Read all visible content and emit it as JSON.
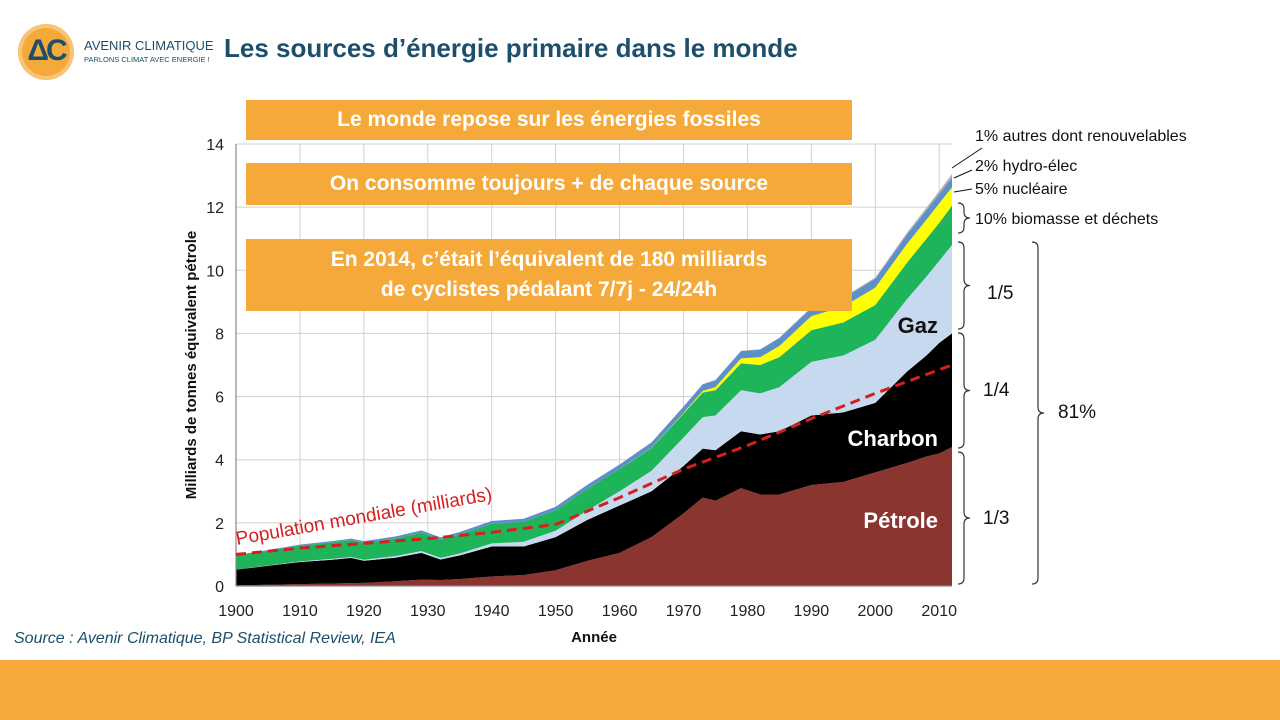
{
  "logo": {
    "mark": "ΔC",
    "name": "AVENIR CLIMATIQUE",
    "tagline": "PARLONS CLIMAT AVEC ENERGIE !"
  },
  "slide_title": "Les sources d’énergie primaire dans le monde",
  "callouts": [
    "Le monde repose sur les énergies fossiles",
    "On consomme toujours + de chaque source",
    "En 2014, c’était l’équivalent de 180 milliards\nde cyclistes pédalant 7/7j - 24/24h"
  ],
  "source_note": "Source : Avenir Climatique, BP Statistical Review, IEA",
  "colors": {
    "petrole": "#8b3530",
    "charbon": "#000000",
    "gaz": "#c7d9ef",
    "biomasse": "#1db45a",
    "nucleaire": "#ffff00",
    "hydro": "#5d8fc9",
    "autres": "#b0b0b0",
    "population": "#d42020",
    "accent": "#f5a93a",
    "title": "#1b4f6b"
  },
  "chart_data": {
    "type": "area",
    "stacked": true,
    "ylabel": "Milliards de tonnes équivalent pétrole",
    "xlabel": "Année",
    "xlim": [
      1900,
      2012
    ],
    "ylim": [
      0,
      14
    ],
    "xticks": [
      1900,
      1910,
      1920,
      1930,
      1940,
      1950,
      1960,
      1970,
      1980,
      1990,
      2000,
      2010
    ],
    "yticks": [
      0,
      2,
      4,
      6,
      8,
      10,
      12,
      14
    ],
    "grid": true,
    "x": [
      1900,
      1905,
      1910,
      1915,
      1918,
      1920,
      1925,
      1929,
      1932,
      1935,
      1940,
      1945,
      1950,
      1955,
      1960,
      1965,
      1970,
      1973,
      1975,
      1979,
      1982,
      1985,
      1990,
      1995,
      2000,
      2005,
      2008,
      2010,
      2012
    ],
    "series": [
      {
        "name": "Pétrole",
        "key": "petrole",
        "values": [
          0.02,
          0.04,
          0.06,
          0.08,
          0.09,
          0.1,
          0.15,
          0.2,
          0.19,
          0.22,
          0.3,
          0.35,
          0.5,
          0.8,
          1.05,
          1.55,
          2.3,
          2.8,
          2.7,
          3.1,
          2.9,
          2.9,
          3.2,
          3.3,
          3.6,
          3.9,
          4.1,
          4.2,
          4.4
        ]
      },
      {
        "name": "Charbon",
        "key": "charbon",
        "values": [
          0.5,
          0.6,
          0.7,
          0.75,
          0.8,
          0.7,
          0.75,
          0.85,
          0.65,
          0.75,
          0.95,
          0.9,
          1.05,
          1.3,
          1.5,
          1.45,
          1.5,
          1.55,
          1.6,
          1.8,
          1.9,
          2.0,
          2.2,
          2.2,
          2.2,
          2.9,
          3.2,
          3.5,
          3.6
        ]
      },
      {
        "name": "Gaz",
        "key": "gaz",
        "values": [
          0.0,
          0.01,
          0.02,
          0.03,
          0.03,
          0.03,
          0.05,
          0.06,
          0.05,
          0.06,
          0.1,
          0.15,
          0.2,
          0.3,
          0.45,
          0.65,
          0.9,
          1.0,
          1.1,
          1.3,
          1.3,
          1.4,
          1.7,
          1.8,
          2.0,
          2.3,
          2.5,
          2.6,
          2.8
        ]
      },
      {
        "name": "10% biomasse et déchets",
        "key": "biomasse",
        "values": [
          0.45,
          0.47,
          0.5,
          0.52,
          0.53,
          0.54,
          0.56,
          0.58,
          0.58,
          0.6,
          0.62,
          0.63,
          0.65,
          0.68,
          0.7,
          0.72,
          0.76,
          0.78,
          0.8,
          0.85,
          0.9,
          0.95,
          1.0,
          1.05,
          1.1,
          1.15,
          1.2,
          1.2,
          1.25
        ]
      },
      {
        "name": "5% nucléaire",
        "key": "nucleaire",
        "values": [
          0,
          0,
          0,
          0,
          0,
          0,
          0,
          0,
          0,
          0,
          0,
          0,
          0,
          0,
          0,
          0.01,
          0.02,
          0.05,
          0.1,
          0.16,
          0.25,
          0.35,
          0.45,
          0.5,
          0.55,
          0.6,
          0.6,
          0.62,
          0.58
        ]
      },
      {
        "name": "2% hydro-élec",
        "key": "hydro",
        "values": [
          0.01,
          0.02,
          0.03,
          0.04,
          0.05,
          0.05,
          0.06,
          0.07,
          0.07,
          0.08,
          0.09,
          0.1,
          0.11,
          0.13,
          0.15,
          0.17,
          0.2,
          0.21,
          0.22,
          0.23,
          0.24,
          0.25,
          0.26,
          0.27,
          0.28,
          0.29,
          0.3,
          0.3,
          0.31
        ]
      },
      {
        "name": "1% autres dont renouvelables",
        "key": "autres",
        "values": [
          0,
          0,
          0,
          0,
          0,
          0,
          0,
          0,
          0,
          0,
          0,
          0,
          0,
          0,
          0,
          0,
          0,
          0,
          0.01,
          0.01,
          0.01,
          0.02,
          0.02,
          0.03,
          0.04,
          0.06,
          0.08,
          0.09,
          0.11
        ]
      }
    ],
    "population": {
      "name": "Population mondiale (milliards)",
      "x": [
        1900,
        1910,
        1920,
        1930,
        1940,
        1950,
        1960,
        1970,
        1980,
        1990,
        2000,
        2012
      ],
      "values": [
        1.0,
        1.2,
        1.35,
        1.5,
        1.7,
        1.95,
        2.8,
        3.7,
        4.45,
        5.3,
        6.1,
        7.0
      ]
    },
    "area_labels": [
      "Gaz",
      "Charbon",
      "Pétrole"
    ],
    "annotations": [
      "1% autres dont renouvelables",
      "2% hydro-élec",
      "5% nucléaire",
      "10% biomasse et déchets"
    ],
    "share_labels": [
      "1/5",
      "1/4",
      "1/3",
      "81%"
    ]
  }
}
